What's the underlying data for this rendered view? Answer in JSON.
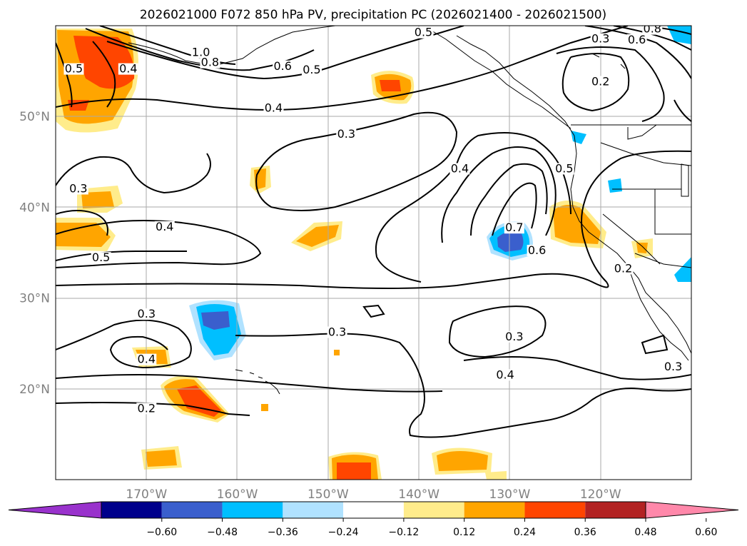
{
  "chart_data": {
    "type": "contour-map",
    "title": "2026021000 F072 850 hPa PV, precipitation PC (2026021400 - 2026021500)",
    "projection": "cylindrical",
    "lon_range": [
      -180,
      -110
    ],
    "lat_range": [
      10,
      60
    ],
    "grid": true,
    "lat_ticks": [
      {
        "value": 50,
        "label": "50°N"
      },
      {
        "value": 40,
        "label": "40°N"
      },
      {
        "value": 30,
        "label": "30°N"
      },
      {
        "value": 20,
        "label": "20°N"
      }
    ],
    "lon_ticks": [
      {
        "value": -170,
        "label": "170°W"
      },
      {
        "value": -160,
        "label": "160°W"
      },
      {
        "value": -150,
        "label": "150°W"
      },
      {
        "value": -140,
        "label": "140°W"
      },
      {
        "value": -130,
        "label": "130°W"
      },
      {
        "value": -120,
        "label": "120°W"
      }
    ],
    "contour_labels": [
      {
        "text": "1.0",
        "lon": -164.0,
        "lat": 56.8
      },
      {
        "text": "0.8",
        "lon": -163.0,
        "lat": 55.7
      },
      {
        "text": "0.6",
        "lon": -155.0,
        "lat": 55.3
      },
      {
        "text": "0.5",
        "lon": -151.8,
        "lat": 54.9
      },
      {
        "text": "0.5",
        "lon": -139.5,
        "lat": 59.0
      },
      {
        "text": "0.4",
        "lon": -156.0,
        "lat": 50.7
      },
      {
        "text": "0.5",
        "lon": -178.0,
        "lat": 55.0
      },
      {
        "text": "0.4",
        "lon": -172.0,
        "lat": 55.0
      },
      {
        "text": "0.3",
        "lon": -148.0,
        "lat": 47.8
      },
      {
        "text": "0.4",
        "lon": -135.5,
        "lat": 44.0
      },
      {
        "text": "0.5",
        "lon": -124.0,
        "lat": 44.0
      },
      {
        "text": "0.7",
        "lon": -129.5,
        "lat": 37.5
      },
      {
        "text": "0.6",
        "lon": -127.0,
        "lat": 35.0
      },
      {
        "text": "0.3",
        "lon": -177.5,
        "lat": 41.8
      },
      {
        "text": "0.4",
        "lon": -168.0,
        "lat": 37.6
      },
      {
        "text": "0.5",
        "lon": -175.0,
        "lat": 34.2
      },
      {
        "text": "0.3",
        "lon": -170.0,
        "lat": 28.0
      },
      {
        "text": "0.4",
        "lon": -170.0,
        "lat": 23.0
      },
      {
        "text": "0.2",
        "lon": -170.0,
        "lat": 17.6
      },
      {
        "text": "0.3",
        "lon": -149.0,
        "lat": 26.0
      },
      {
        "text": "0.3",
        "lon": -129.5,
        "lat": 25.5
      },
      {
        "text": "0.4",
        "lon": -130.5,
        "lat": 21.3
      },
      {
        "text": "0.3",
        "lon": -120.0,
        "lat": 58.3
      },
      {
        "text": "0.2",
        "lon": -120.0,
        "lat": 53.6
      },
      {
        "text": "0.8",
        "lon": -114.3,
        "lat": 59.4
      },
      {
        "text": "0.6",
        "lon": -116.0,
        "lat": 58.2
      },
      {
        "text": "0.2",
        "lon": -117.5,
        "lat": 33.0
      },
      {
        "text": "0.3",
        "lon": -112.0,
        "lat": 22.2
      }
    ],
    "colorbar": {
      "ticks": [
        "−0.60",
        "−0.48",
        "−0.36",
        "−0.24",
        "−0.12",
        "0.12",
        "0.24",
        "0.36",
        "0.48",
        "0.60"
      ],
      "colors": [
        "#9932cc",
        "#00008b",
        "#3a5fcd",
        "#00bfff",
        "#b0e2ff",
        "#ffffff",
        "#ffec8b",
        "#ffa500",
        "#ff4500",
        "#b22222",
        "#ff88aa"
      ]
    }
  }
}
